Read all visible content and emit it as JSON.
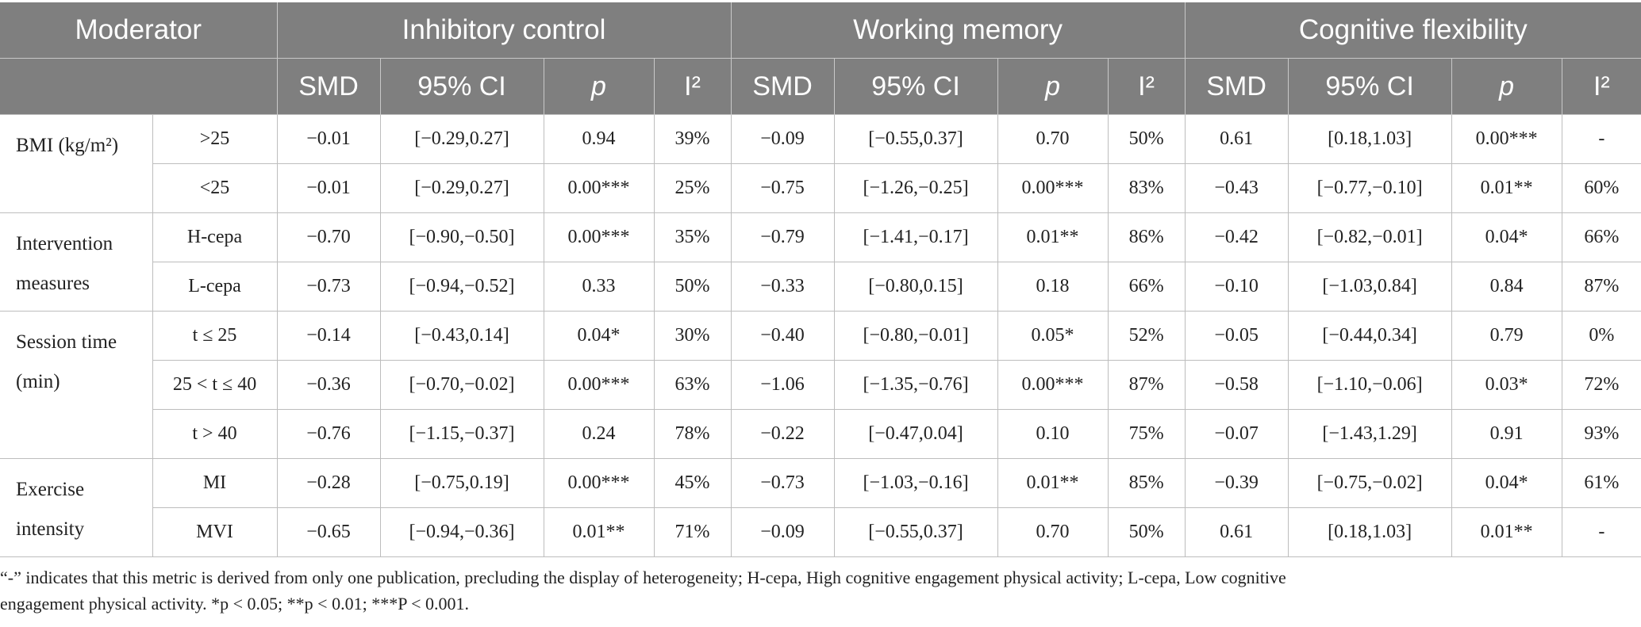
{
  "header": {
    "moderator": "Moderator",
    "groups": [
      "Inhibitory control",
      "Working memory",
      "Cognitive flexibility"
    ],
    "sub": [
      "SMD",
      "95% CI",
      "p",
      "I²"
    ]
  },
  "groups": [
    {
      "label_lines": [
        "BMI (kg/m²)"
      ],
      "rows": [
        {
          "level": ">25",
          "ic": [
            "−0.01",
            "[−0.29,0.27]",
            "0.94",
            "39%"
          ],
          "wm": [
            "−0.09",
            "[−0.55,0.37]",
            "0.70",
            "50%"
          ],
          "cf": [
            "0.61",
            "[0.18,1.03]",
            "0.00***",
            "-"
          ]
        },
        {
          "level": "<25",
          "ic": [
            "−0.01",
            "[−0.29,0.27]",
            "0.00***",
            "25%"
          ],
          "wm": [
            "−0.75",
            "[−1.26,−0.25]",
            "0.00***",
            "83%"
          ],
          "cf": [
            "−0.43",
            "[−0.77,−0.10]",
            "0.01**",
            "60%"
          ]
        }
      ]
    },
    {
      "label_lines": [
        "Intervention",
        "measures"
      ],
      "rows": [
        {
          "level": "H-cepa",
          "ic": [
            "−0.70",
            "[−0.90,−0.50]",
            "0.00***",
            "35%"
          ],
          "wm": [
            "−0.79",
            "[−1.41,−0.17]",
            "0.01**",
            "86%"
          ],
          "cf": [
            "−0.42",
            "[−0.82,−0.01]",
            "0.04*",
            "66%"
          ]
        },
        {
          "level": "L-cepa",
          "ic": [
            "−0.73",
            "[−0.94,−0.52]",
            "0.33",
            "50%"
          ],
          "wm": [
            "−0.33",
            "[−0.80,0.15]",
            "0.18",
            "66%"
          ],
          "cf": [
            "−0.10",
            "[−1.03,0.84]",
            "0.84",
            "87%"
          ]
        }
      ]
    },
    {
      "label_lines": [
        "Session time",
        "(min)"
      ],
      "rows": [
        {
          "level": "t ≤ 25",
          "ic": [
            "−0.14",
            "[−0.43,0.14]",
            "0.04*",
            "30%"
          ],
          "wm": [
            "−0.40",
            "[−0.80,−0.01]",
            "0.05*",
            "52%"
          ],
          "cf": [
            "−0.05",
            "[−0.44,0.34]",
            "0.79",
            "0%"
          ]
        },
        {
          "level": "25 < t ≤ 40",
          "ic": [
            "−0.36",
            "[−0.70,−0.02]",
            "0.00***",
            "63%"
          ],
          "wm": [
            "−1.06",
            "[−1.35,−0.76]",
            "0.00***",
            "87%"
          ],
          "cf": [
            "−0.58",
            "[−1.10,−0.06]",
            "0.03*",
            "72%"
          ]
        },
        {
          "level": "t > 40",
          "ic": [
            "−0.76",
            "[−1.15,−0.37]",
            "0.24",
            "78%"
          ],
          "wm": [
            "−0.22",
            "[−0.47,0.04]",
            "0.10",
            "75%"
          ],
          "cf": [
            "−0.07",
            "[−1.43,1.29]",
            "0.91",
            "93%"
          ]
        }
      ]
    },
    {
      "label_lines": [
        "Exercise",
        "intensity"
      ],
      "rows": [
        {
          "level": "MI",
          "ic": [
            "−0.28",
            "[−0.75,0.19]",
            "0.00***",
            "45%"
          ],
          "wm": [
            "−0.73",
            "[−1.03,−0.16]",
            "0.01**",
            "85%"
          ],
          "cf": [
            "−0.39",
            "[−0.75,−0.02]",
            "0.04*",
            "61%"
          ]
        },
        {
          "level": "MVI",
          "ic": [
            "−0.65",
            "[−0.94,−0.36]",
            "0.01**",
            "71%"
          ],
          "wm": [
            "−0.09",
            "[−0.55,0.37]",
            "0.70",
            "50%"
          ],
          "cf": [
            "0.61",
            "[0.18,1.03]",
            "0.01**",
            "-"
          ]
        }
      ]
    }
  ],
  "footnote": {
    "line1": "“-” indicates that this metric is derived from only one publication, precluding the display of heterogeneity; H-cepa, High cognitive engagement physical activity; L-cepa, Low cognitive",
    "line2": "engagement physical activity. *p < 0.05; **p < 0.01; ***P < 0.001."
  }
}
